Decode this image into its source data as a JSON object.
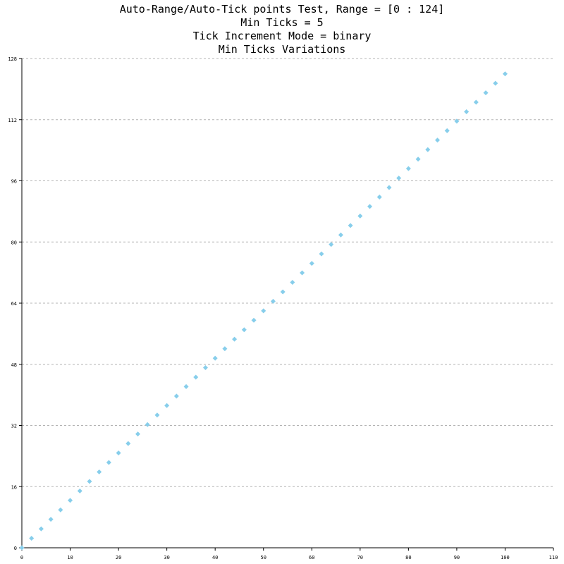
{
  "chart_data": {
    "type": "scatter",
    "title": [
      "Auto-Range/Auto-Tick points Test, Range = [0 : 124]",
      "Min Ticks = 5",
      "Tick Increment Mode = binary",
      "Min Ticks Variations"
    ],
    "xlabel": "",
    "ylabel": "",
    "xlim": [
      0,
      110
    ],
    "ylim": [
      0,
      128
    ],
    "xticks": [
      0,
      10,
      20,
      30,
      40,
      50,
      60,
      70,
      80,
      90,
      100,
      110
    ],
    "yticks": [
      0,
      16,
      32,
      48,
      64,
      80,
      96,
      112,
      128
    ],
    "grid": "horizontal-dashed",
    "legend": "none",
    "marker": "diamond",
    "series": [
      {
        "color": "#87ceeb",
        "x": [
          0,
          2,
          4,
          6,
          8,
          10,
          12,
          14,
          16,
          18,
          20,
          22,
          24,
          26,
          28,
          30,
          32,
          34,
          36,
          38,
          40,
          42,
          44,
          46,
          48,
          50,
          52,
          54,
          56,
          58,
          60,
          62,
          64,
          66,
          68,
          70,
          72,
          74,
          76,
          78,
          80,
          82,
          84,
          86,
          88,
          90,
          92,
          94,
          96,
          98,
          100
        ],
        "y": [
          0,
          2.48,
          4.96,
          7.44,
          9.92,
          12.4,
          14.88,
          17.36,
          19.84,
          22.32,
          24.8,
          27.28,
          29.76,
          32.24,
          34.72,
          37.2,
          39.68,
          42.16,
          44.64,
          47.12,
          49.6,
          52.08,
          54.56,
          57.04,
          59.52,
          62,
          64.48,
          66.96,
          69.44,
          71.92,
          74.4,
          76.88,
          79.36,
          81.84,
          84.32,
          86.8,
          89.28,
          91.76,
          94.24,
          96.72,
          99.2,
          101.68,
          104.16,
          106.64,
          109.12,
          111.6,
          114.08,
          116.56,
          119.04,
          121.52,
          124
        ]
      }
    ]
  }
}
